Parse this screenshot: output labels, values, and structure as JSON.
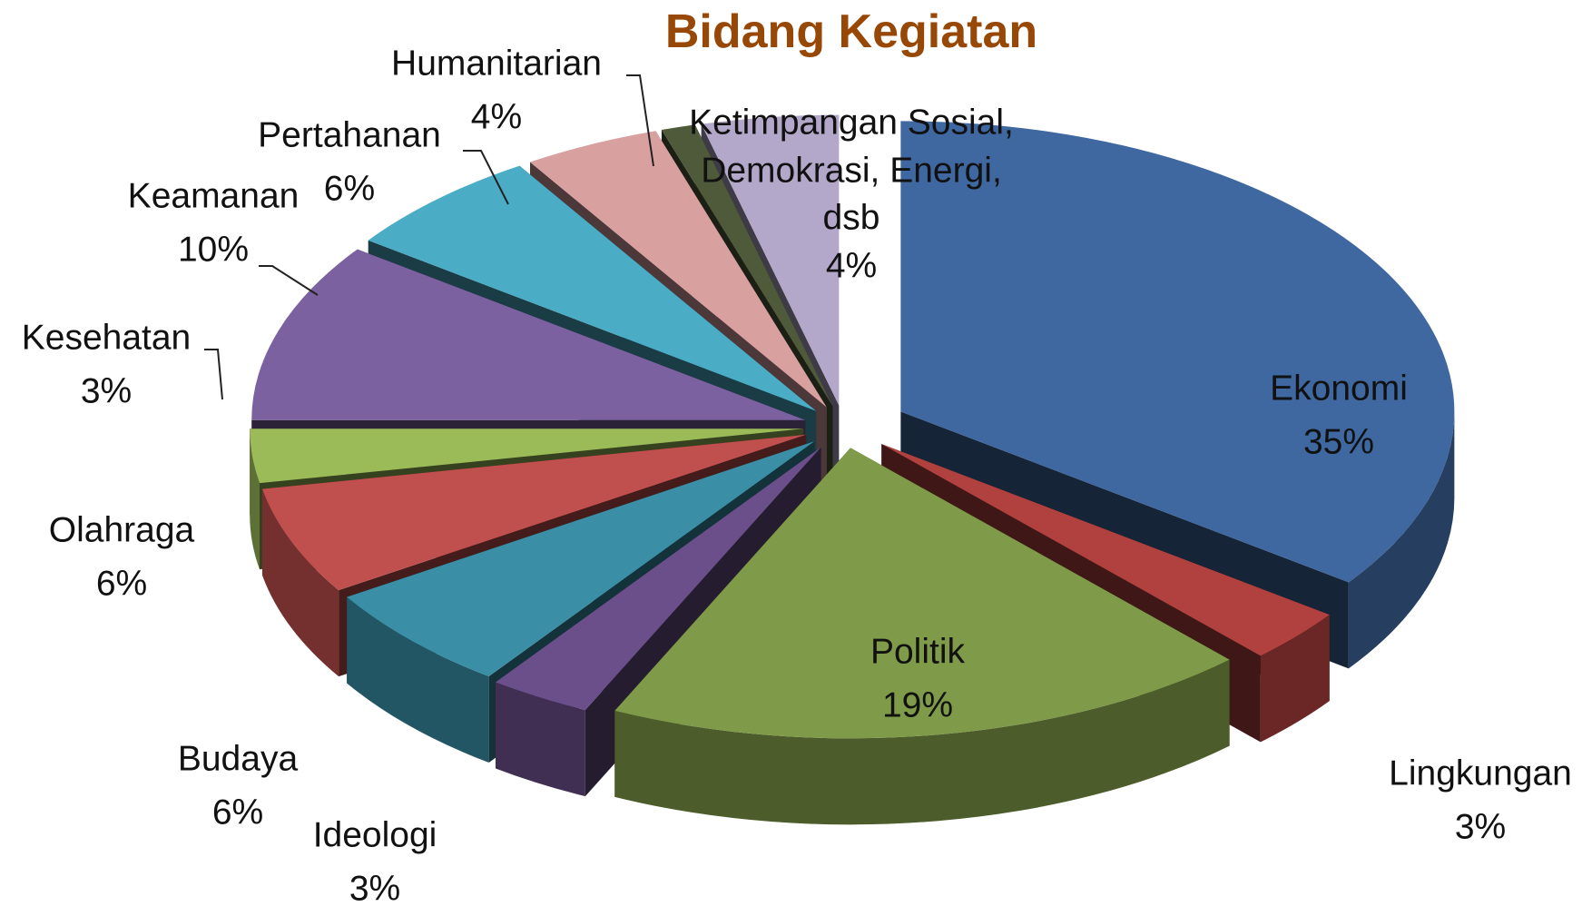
{
  "chart_data": {
    "type": "pie",
    "title": "Bidang Kegiatan",
    "categories": [
      "Ekonomi",
      "Lingkungan",
      "Politik",
      "Ideologi",
      "Budaya",
      "Olahraga",
      "Kesehatan",
      "Keamanan",
      "Pertahanan",
      "Humanitarian",
      null,
      "Ketimpangan Sosial, Demokrasi, Energi, dsb"
    ],
    "values": [
      35,
      3,
      19,
      3,
      6,
      6,
      3,
      10,
      6,
      4,
      1,
      4
    ],
    "value_labels": [
      "35%",
      "3%",
      "19%",
      "3%",
      "6%",
      "6%",
      "3%",
      "10%",
      "6%",
      "4%",
      null,
      "4%"
    ],
    "colors": [
      "#3f67a0",
      "#b0413e",
      "#7f9a48",
      "#6a4f8a",
      "#3a8fa6",
      "#c0504d",
      "#9bbb59",
      "#7b61a0",
      "#4bacc6",
      "#d9a0a0",
      "#4f5a3a",
      "#b3a8c9"
    ]
  }
}
